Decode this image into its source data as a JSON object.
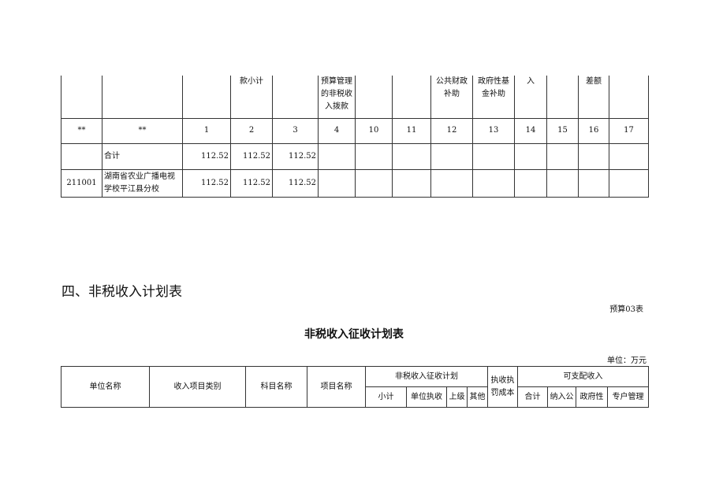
{
  "top_table": {
    "header": [
      "",
      "",
      "",
      "款小计",
      "",
      "预算管理的非税收入拨款",
      "",
      "",
      "公共财政补助",
      "政府性基金补助",
      "入",
      "",
      "差额",
      ""
    ],
    "numbers": [
      "**",
      "**",
      "1",
      "2",
      "3",
      "4",
      "10",
      "11",
      "12",
      "13",
      "14",
      "15",
      "16",
      "17"
    ],
    "rows": [
      [
        "",
        "合计",
        "112.52",
        "112.52",
        "112.52",
        "",
        "",
        "",
        "",
        "",
        "",
        "",
        "",
        ""
      ],
      [
        "211001",
        "湖南省农业广播电视学校平江县分校",
        "112.52",
        "112.52",
        "112.52",
        "",
        "",
        "",
        "",
        "",
        "",
        "",
        "",
        ""
      ]
    ]
  },
  "section_heading": "四、非税收入计划表",
  "table_code": "预算03表",
  "table_title": "非税收入征收计划表",
  "unit": "单位：万元",
  "bottom_table": {
    "unit_name": "单位名称",
    "income_type": "收入项目类别",
    "subject_name": "科目名称",
    "project_name": "项目名称",
    "plan": "非税收入征收计划",
    "plan_sub": [
      "小计",
      "单位执收",
      "上级",
      "其他"
    ],
    "cost": "执收执罚成本",
    "disposable": "可支配收入",
    "disp_sub": [
      "合计",
      "纳入公",
      "政府性",
      "专户管理"
    ]
  }
}
